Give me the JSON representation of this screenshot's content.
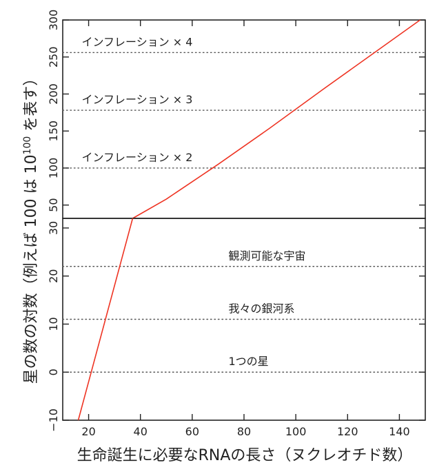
{
  "chart_data": {
    "type": "line",
    "xlabel": "生命誕生に必要なRNAの長さ（ヌクレオチド数）",
    "ylabel_parts": [
      "星の数の対数（例えば 100 は 10",
      "100",
      " を表す）"
    ],
    "xlim": [
      10,
      150
    ],
    "xticks": [
      20,
      40,
      60,
      80,
      100,
      120,
      140
    ],
    "colors": {
      "line": "#ee3322",
      "axis": "#222222",
      "reference": "#555555"
    },
    "panels": [
      {
        "name": "upper",
        "ylim": [
          32,
          300
        ],
        "yticks": [
          50,
          100,
          150,
          200,
          250,
          300
        ],
        "reference_lines": [
          {
            "y": 100,
            "label": "インフレーション × 2",
            "label_x": 12
          },
          {
            "y": 178,
            "label": "インフレーション × 3",
            "label_x": 12
          },
          {
            "y": 256,
            "label": "インフレーション × 4",
            "label_x": 12
          }
        ],
        "series": [
          {
            "x": [
              37,
              50,
              70,
              90,
              110,
              130,
              148
            ],
            "y": [
              32,
              58,
              105,
              154,
              205,
              255,
              300
            ]
          }
        ]
      },
      {
        "name": "lower",
        "ylim": [
          -10,
          32
        ],
        "yticks": [
          -10,
          0,
          10,
          20,
          30
        ],
        "reference_lines": [
          {
            "y": 0,
            "label": "1つの星",
            "label_x": 74
          },
          {
            "y": 11,
            "label": "我々の銀河系",
            "label_x": 74
          },
          {
            "y": 22,
            "label": "観測可能な宇宙",
            "label_x": 74
          }
        ],
        "series": [
          {
            "x": [
              16,
              37
            ],
            "y": [
              -10,
              32
            ]
          }
        ]
      }
    ]
  }
}
